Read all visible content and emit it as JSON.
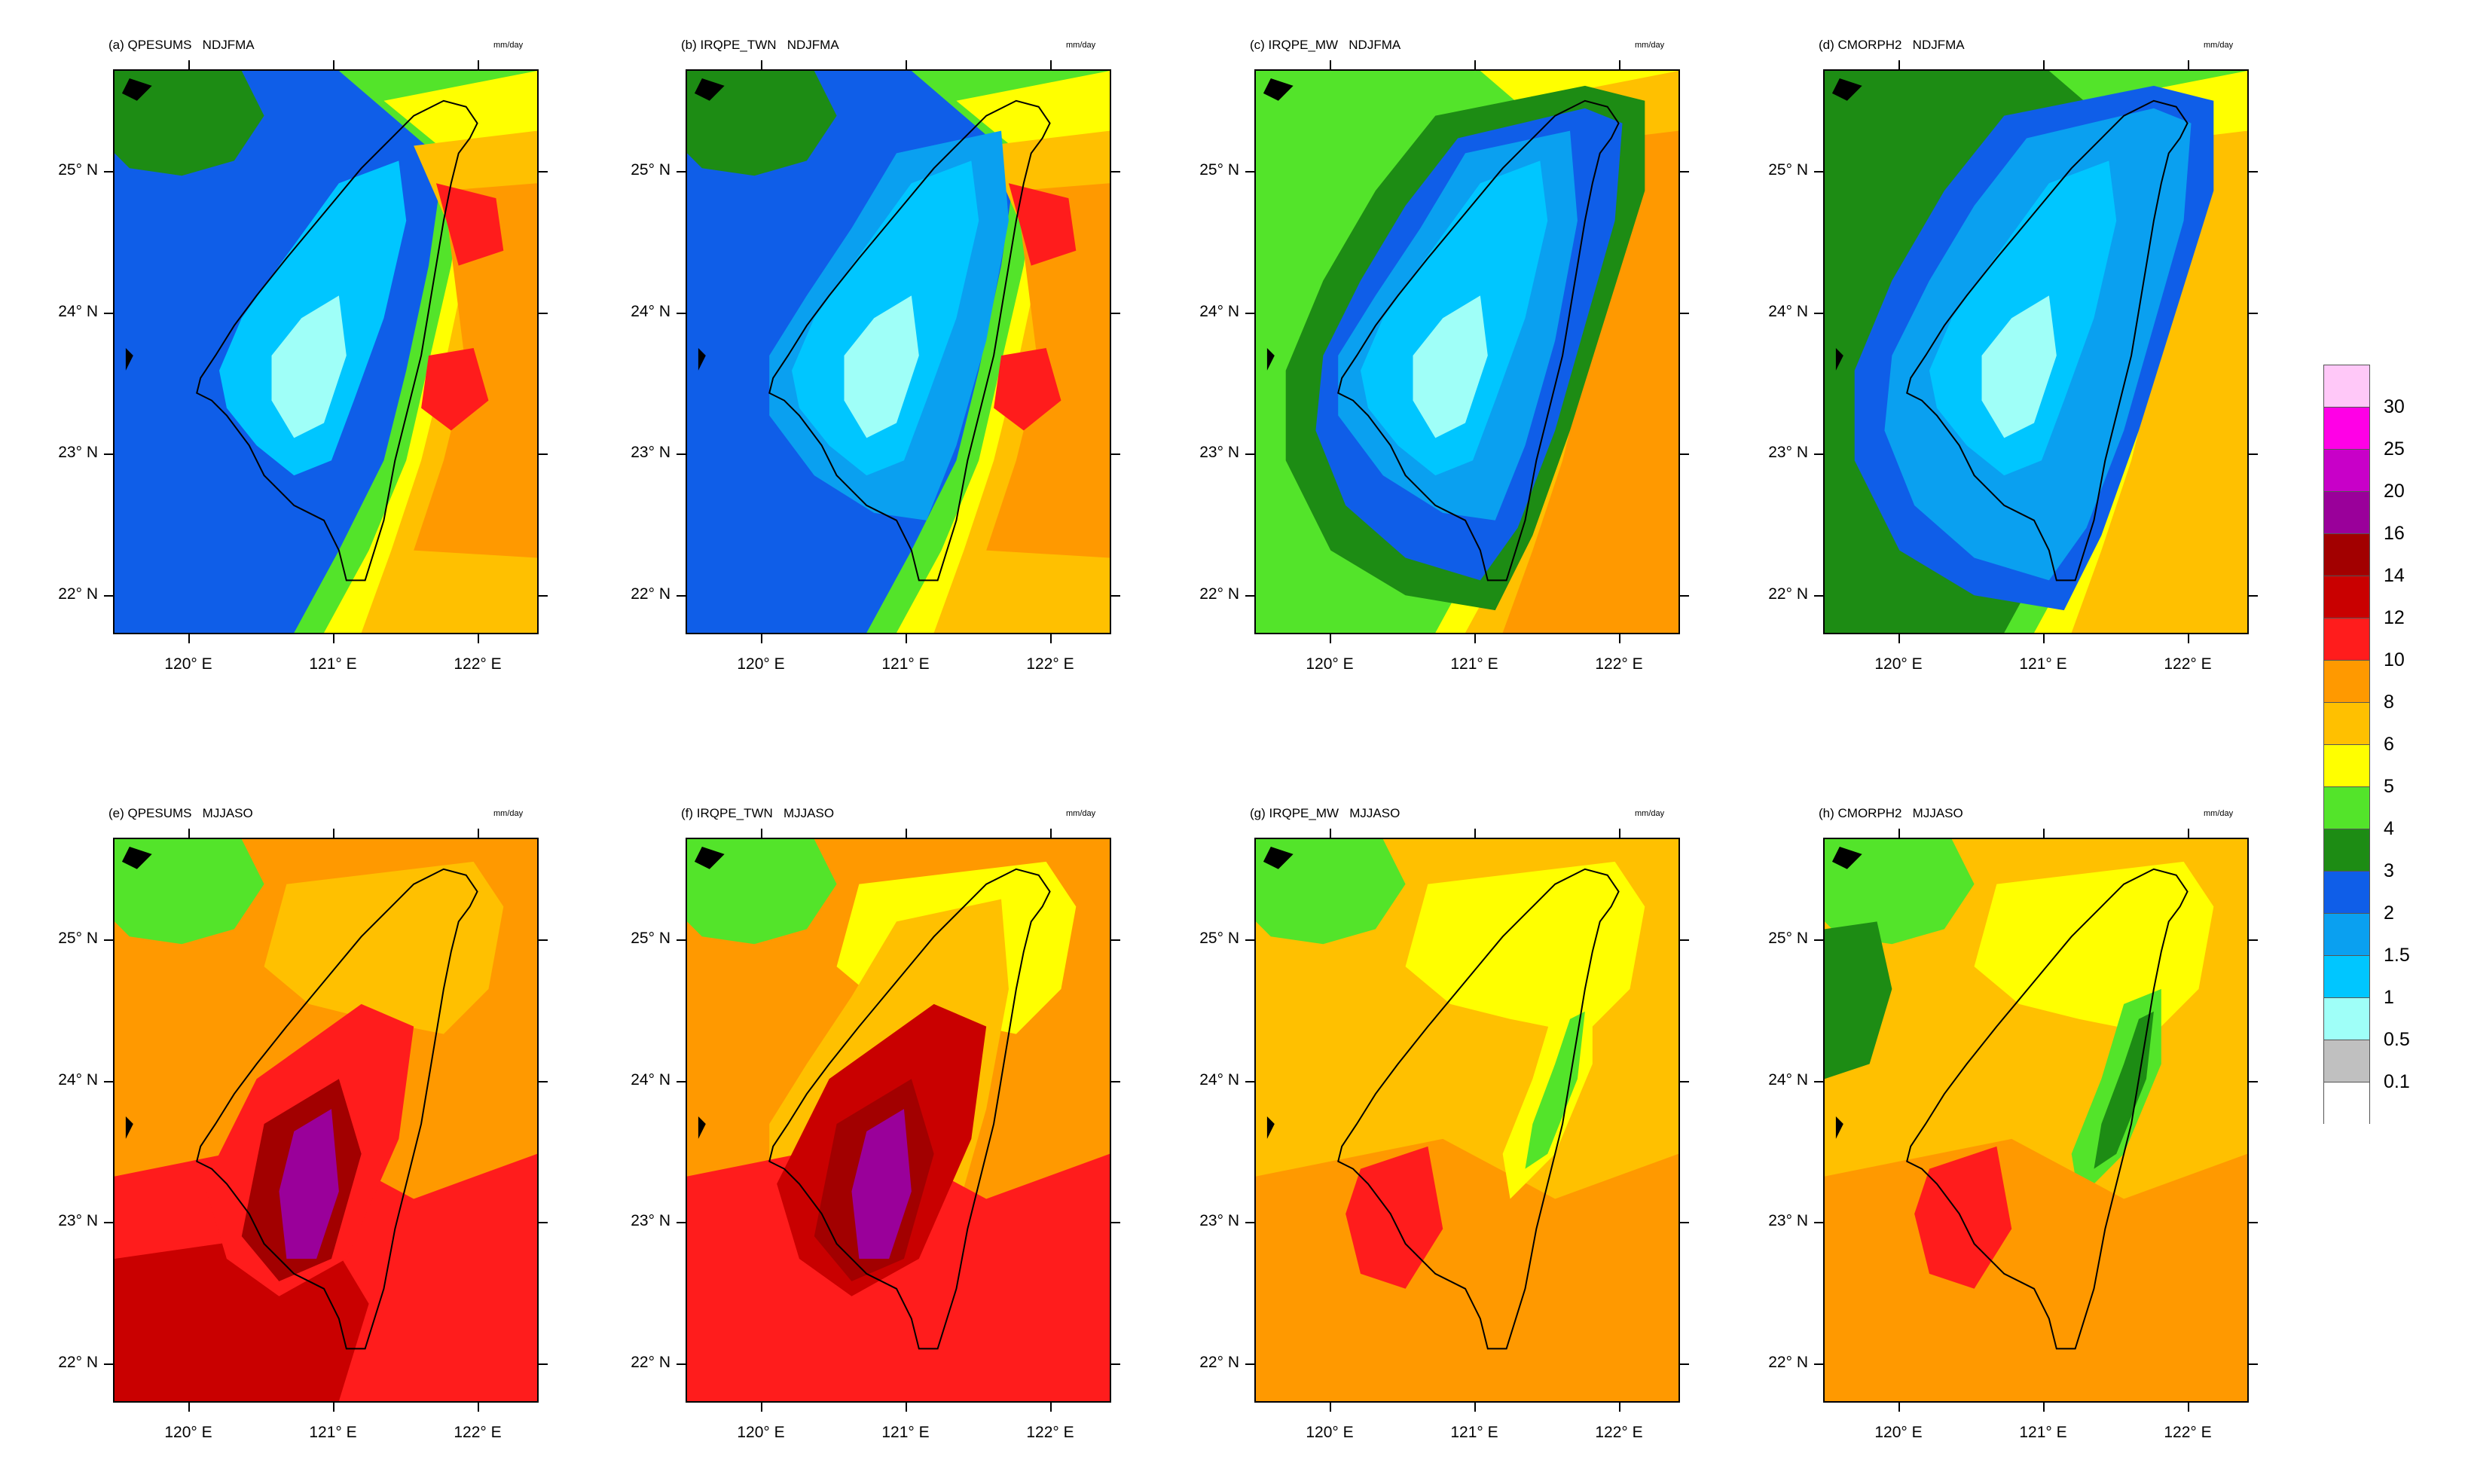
{
  "unit": "mm/day",
  "panels": [
    {
      "title": "(a) QPESUMS   NDJFMA",
      "bg": "#0f5ee8",
      "blobs": [
        {
          "c": "#1d8c14",
          "shape": "nw"
        },
        {
          "c": "#53e42a",
          "shape": "east"
        },
        {
          "c": "#ffff00",
          "shape": "eastin"
        },
        {
          "c": "#ffc000",
          "shape": "eastcore"
        },
        {
          "c": "#ff9900",
          "shape": "eastcore2"
        },
        {
          "c": "#ff1c1c",
          "shape": "hot1"
        },
        {
          "c": "#00c6ff",
          "shape": "land"
        },
        {
          "c": "#9ffff8",
          "shape": "landcore"
        }
      ]
    },
    {
      "title": "(b) IRQPE_TWN   NDJFMA",
      "bg": "#0f5ee8",
      "blobs": [
        {
          "c": "#1d8c14",
          "shape": "nw"
        },
        {
          "c": "#53e42a",
          "shape": "east"
        },
        {
          "c": "#ffff00",
          "shape": "eastin"
        },
        {
          "c": "#ffc000",
          "shape": "eastcore"
        },
        {
          "c": "#ff9900",
          "shape": "eastcore2"
        },
        {
          "c": "#ff1c1c",
          "shape": "hot1"
        },
        {
          "c": "#0aa0f0",
          "shape": "landw"
        },
        {
          "c": "#00c6ff",
          "shape": "land"
        },
        {
          "c": "#9ffff8",
          "shape": "landcore"
        }
      ]
    },
    {
      "title": "(c) IRQPE_MW   NDJFMA",
      "bg": "#53e42a",
      "blobs": [
        {
          "c": "#ffff00",
          "shape": "east"
        },
        {
          "c": "#ffc000",
          "shape": "eastin"
        },
        {
          "c": "#ff9900",
          "shape": "eastcore"
        },
        {
          "c": "#1d8c14",
          "shape": "ring"
        },
        {
          "c": "#0f5ee8",
          "shape": "ring2"
        },
        {
          "c": "#0aa0f0",
          "shape": "landw"
        },
        {
          "c": "#00c6ff",
          "shape": "land"
        },
        {
          "c": "#9ffff8",
          "shape": "landcore"
        }
      ]
    },
    {
      "title": "(d) CMORPH2   NDJFMA",
      "bg": "#1d8c14",
      "blobs": [
        {
          "c": "#53e42a",
          "shape": "east"
        },
        {
          "c": "#ffff00",
          "shape": "eastin"
        },
        {
          "c": "#ffc000",
          "shape": "eastcore"
        },
        {
          "c": "#0f5ee8",
          "shape": "ring"
        },
        {
          "c": "#0aa0f0",
          "shape": "ring2"
        },
        {
          "c": "#00c6ff",
          "shape": "land"
        },
        {
          "c": "#9ffff8",
          "shape": "landcore"
        }
      ]
    },
    {
      "title": "(e) QPESUMS   MJJASO",
      "bg": "#ff9900",
      "blobs": [
        {
          "c": "#53e42a",
          "shape": "nw"
        },
        {
          "c": "#ffc000",
          "shape": "north"
        },
        {
          "c": "#ff1c1c",
          "shape": "south"
        },
        {
          "c": "#c90000",
          "shape": "south2"
        },
        {
          "c": "#ff1c1c",
          "shape": "mtn"
        },
        {
          "c": "#a20000",
          "shape": "mtn2"
        },
        {
          "c": "#9a009a",
          "shape": "core"
        }
      ]
    },
    {
      "title": "(f) IRQPE_TWN   MJJASO",
      "bg": "#ff9900",
      "blobs": [
        {
          "c": "#53e42a",
          "shape": "nw"
        },
        {
          "c": "#ffff00",
          "shape": "north"
        },
        {
          "c": "#ffc000",
          "shape": "landw"
        },
        {
          "c": "#ff1c1c",
          "shape": "south"
        },
        {
          "c": "#c90000",
          "shape": "mtn"
        },
        {
          "c": "#a20000",
          "shape": "mtn2"
        },
        {
          "c": "#9a009a",
          "shape": "core"
        }
      ]
    },
    {
      "title": "(g) IRQPE_MW   MJJASO",
      "bg": "#ffc000",
      "blobs": [
        {
          "c": "#53e42a",
          "shape": "nw"
        },
        {
          "c": "#ffff00",
          "shape": "north"
        },
        {
          "c": "#ff9900",
          "shape": "south"
        },
        {
          "c": "#ffff00",
          "shape": "eastridge"
        },
        {
          "c": "#53e42a",
          "shape": "eastridge2"
        },
        {
          "c": "#ff1c1c",
          "shape": "swhot"
        }
      ]
    },
    {
      "title": "(h) CMORPH2   MJJASO",
      "bg": "#ffc000",
      "blobs": [
        {
          "c": "#53e42a",
          "shape": "nw"
        },
        {
          "c": "#1d8c14",
          "shape": "nw2"
        },
        {
          "c": "#ffff00",
          "shape": "north"
        },
        {
          "c": "#53e42a",
          "shape": "eastridge"
        },
        {
          "c": "#1d8c14",
          "shape": "eastridge2"
        },
        {
          "c": "#ff9900",
          "shape": "south"
        },
        {
          "c": "#ff1c1c",
          "shape": "swhot"
        }
      ]
    }
  ],
  "lat_labels": [
    "25° N",
    "24° N",
    "23° N",
    "22° N"
  ],
  "lon_labels": [
    "120° E",
    "121° E",
    "122° E"
  ],
  "legend": {
    "colors": [
      "#ffc8f8",
      "#ff00e6",
      "#c800c8",
      "#9a009a",
      "#a20000",
      "#c90000",
      "#ff1c1c",
      "#ff9900",
      "#ffc000",
      "#ffff00",
      "#53e42a",
      "#1d8c14",
      "#0f5ee8",
      "#0aa0f0",
      "#00c6ff",
      "#9ffff8",
      "#c0c0c0",
      "#ffffff"
    ],
    "labels": [
      "30",
      "25",
      "20",
      "16",
      "14",
      "12",
      "10",
      "8",
      "6",
      "5",
      "4",
      "3",
      "2",
      "1.5",
      "1",
      "0.5",
      "0.1"
    ]
  }
}
